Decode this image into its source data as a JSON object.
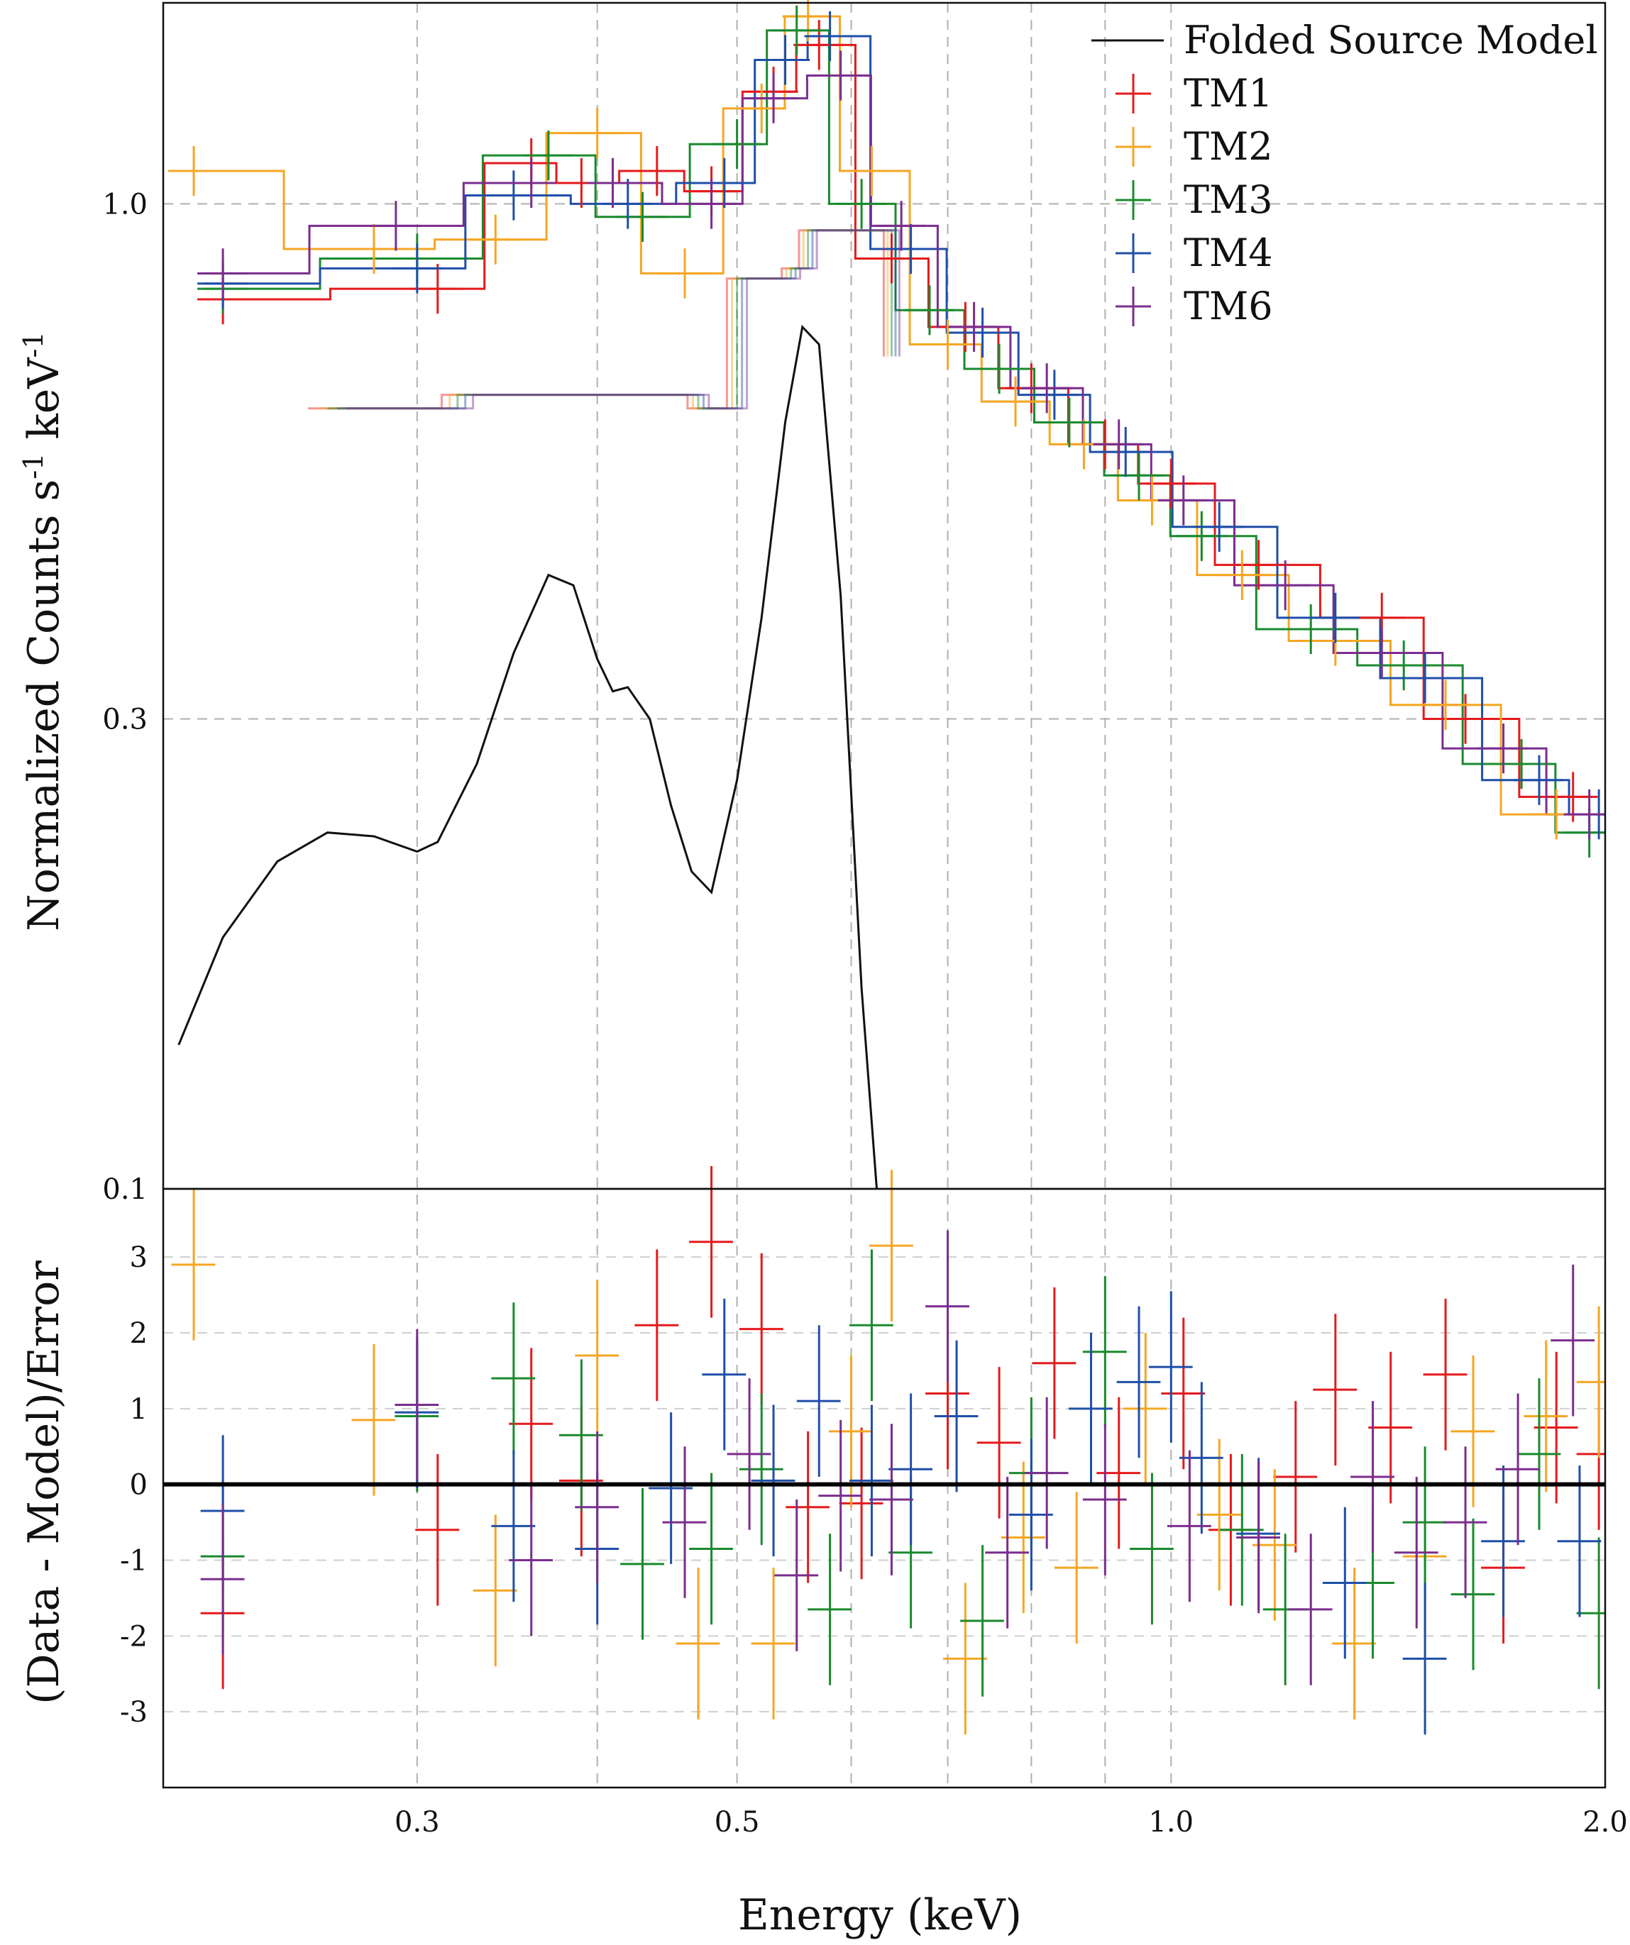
{
  "chart_data": {
    "type": "line",
    "xscale": "log",
    "xlim": [
      0.2,
      2.0
    ],
    "xlabel": "Energy (keV)",
    "x_ticks": [
      0.3,
      0.5,
      1.0,
      2.0
    ],
    "x_tick_labels": [
      "0.3",
      "0.5",
      "1.0",
      "2.0"
    ],
    "x_grid_minor": [
      0.4,
      0.6,
      0.7,
      0.8,
      0.9
    ],
    "colors": {
      "TM1": "#e41a1c",
      "TM2": "#f5a623",
      "TM3": "#1a8a2e",
      "TM4": "#1f4fa8",
      "TM6": "#7b2d8e",
      "model": "#111111"
    },
    "legend": {
      "placement": "top-right",
      "entries": [
        "Folded Source Model",
        "TM1",
        "TM2",
        "TM3",
        "TM4",
        "TM6"
      ]
    },
    "top": {
      "yscale": "log",
      "ylim": [
        0.1,
        1.6
      ],
      "ylabel_main": "Normalized Counts s",
      "ylabel_sup1": "-1",
      "ylabel_mid": " keV",
      "ylabel_sup2": "-1",
      "y_ticks": [
        0.1,
        0.3,
        1.0
      ],
      "y_tick_labels": [
        "0.1",
        "0.3",
        "1.0"
      ],
      "folded_source_model": {
        "x": [
          0.205,
          0.22,
          0.24,
          0.26,
          0.28,
          0.3,
          0.31,
          0.33,
          0.35,
          0.37,
          0.385,
          0.4,
          0.41,
          0.42,
          0.435,
          0.45,
          0.465,
          0.48,
          0.5,
          0.52,
          0.54,
          0.555,
          0.57,
          0.59,
          0.61,
          0.625
        ],
        "y": [
          0.14,
          0.18,
          0.215,
          0.23,
          0.228,
          0.22,
          0.225,
          0.27,
          0.35,
          0.42,
          0.41,
          0.345,
          0.32,
          0.323,
          0.3,
          0.245,
          0.21,
          0.2,
          0.26,
          0.38,
          0.6,
          0.75,
          0.72,
          0.4,
          0.16,
          0.1
        ]
      },
      "data": {
        "TM1": {
          "x": [
            0.22,
            0.31,
            0.36,
            0.39,
            0.44,
            0.48,
            0.53,
            0.57,
            0.64,
            0.72,
            0.8,
            0.9,
            1.0,
            1.15,
            1.4,
            1.6,
            1.9
          ],
          "y": [
            0.8,
            0.82,
            1.1,
            1.05,
            1.08,
            1.03,
            1.3,
            1.45,
            0.88,
            0.75,
            0.65,
            0.57,
            0.52,
            0.43,
            0.38,
            0.3,
            0.25
          ]
        },
        "TM2": {
          "x": [
            0.21,
            0.28,
            0.34,
            0.4,
            0.46,
            0.52,
            0.56,
            0.62,
            0.7,
            0.78,
            0.87,
            0.97,
            1.12,
            1.3,
            1.55,
            1.85
          ],
          "y": [
            1.08,
            0.9,
            0.92,
            1.18,
            0.85,
            1.25,
            1.55,
            1.08,
            0.72,
            0.63,
            0.57,
            0.5,
            0.42,
            0.36,
            0.31,
            0.24
          ]
        },
        "TM3": {
          "x": [
            0.22,
            0.3,
            0.37,
            0.43,
            0.5,
            0.55,
            0.61,
            0.68,
            0.76,
            0.85,
            0.95,
            1.05,
            1.25,
            1.45,
            1.75,
            1.95
          ],
          "y": [
            0.82,
            0.88,
            1.12,
            0.97,
            1.15,
            1.5,
            1.0,
            0.78,
            0.68,
            0.6,
            0.53,
            0.46,
            0.37,
            0.34,
            0.27,
            0.23
          ]
        },
        "TM4": {
          "x": [
            0.22,
            0.3,
            0.35,
            0.42,
            0.49,
            0.54,
            0.58,
            0.66,
            0.74,
            0.83,
            0.93,
            1.08,
            1.3,
            1.5,
            1.8,
            1.98
          ],
          "y": [
            0.83,
            0.86,
            1.02,
            1.0,
            1.05,
            1.4,
            1.48,
            0.9,
            0.74,
            0.64,
            0.56,
            0.47,
            0.38,
            0.33,
            0.26,
            0.24
          ]
        },
        "TM6": {
          "x": [
            0.22,
            0.29,
            0.36,
            0.41,
            0.48,
            0.53,
            0.59,
            0.65,
            0.73,
            0.82,
            0.92,
            1.02,
            1.2,
            1.4,
            1.7,
            1.95
          ],
          "y": [
            0.85,
            0.95,
            1.05,
            1.05,
            1.0,
            1.28,
            1.35,
            0.95,
            0.75,
            0.65,
            0.57,
            0.5,
            0.41,
            0.35,
            0.28,
            0.24
          ]
        }
      }
    },
    "bottom": {
      "ylim": [
        -4,
        3.9
      ],
      "ylabel": "(Data - Model)/Error",
      "y_ticks": [
        -3,
        -2,
        -1,
        0,
        1,
        2,
        3
      ],
      "y_tick_labels": [
        "-3",
        "-2",
        "-1",
        "0",
        "1",
        "2",
        "3"
      ],
      "zero_line": 0,
      "residuals": {
        "TM1": {
          "x": [
            0.22,
            0.31,
            0.36,
            0.39,
            0.44,
            0.48,
            0.52,
            0.56,
            0.61,
            0.7,
            0.76,
            0.83,
            0.92,
            1.02,
            1.1,
            1.22,
            1.3,
            1.42,
            1.55,
            1.7,
            1.85,
            1.98
          ],
          "y": [
            -1.7,
            -0.6,
            0.8,
            0.05,
            2.1,
            3.2,
            2.05,
            -0.3,
            -0.25,
            1.2,
            0.55,
            1.6,
            0.15,
            1.2,
            -0.6,
            0.1,
            1.25,
            0.75,
            1.45,
            -1.1,
            0.75,
            0.4
          ]
        },
        "TM2": {
          "x": [
            0.21,
            0.28,
            0.34,
            0.4,
            0.47,
            0.53,
            0.6,
            0.64,
            0.72,
            0.79,
            0.86,
            0.96,
            1.08,
            1.18,
            1.34,
            1.5,
            1.62,
            1.82,
            1.98
          ],
          "y": [
            2.9,
            0.85,
            -1.4,
            1.7,
            -2.1,
            -2.1,
            0.7,
            3.15,
            -2.3,
            -0.7,
            -1.1,
            1.0,
            -0.4,
            -0.8,
            -2.1,
            -0.95,
            0.7,
            0.9,
            1.35
          ]
        },
        "TM3": {
          "x": [
            0.22,
            0.3,
            0.35,
            0.39,
            0.43,
            0.48,
            0.52,
            0.58,
            0.62,
            0.66,
            0.74,
            0.8,
            0.9,
            0.97,
            1.12,
            1.2,
            1.38,
            1.5,
            1.62,
            1.8,
            1.98
          ],
          "y": [
            -0.95,
            0.9,
            1.4,
            0.65,
            -1.05,
            -0.85,
            0.2,
            -1.65,
            2.1,
            -0.9,
            -1.8,
            0.15,
            1.75,
            -0.85,
            -0.6,
            -1.65,
            -1.3,
            -0.5,
            -1.45,
            0.4,
            -1.7
          ]
        },
        "TM4": {
          "x": [
            0.22,
            0.3,
            0.35,
            0.4,
            0.45,
            0.49,
            0.53,
            0.57,
            0.62,
            0.66,
            0.71,
            0.8,
            0.88,
            0.95,
            1.0,
            1.05,
            1.15,
            1.32,
            1.5,
            1.7,
            1.92
          ],
          "y": [
            -0.35,
            0.95,
            -0.55,
            -0.85,
            -0.05,
            1.45,
            0.05,
            1.1,
            0.05,
            0.2,
            0.9,
            -0.4,
            1.0,
            1.35,
            1.55,
            0.35,
            -0.65,
            -1.3,
            -2.3,
            -0.75,
            -0.75
          ]
        },
        "TM6": {
          "x": [
            0.22,
            0.3,
            0.36,
            0.4,
            0.46,
            0.51,
            0.55,
            0.59,
            0.64,
            0.7,
            0.77,
            0.82,
            0.9,
            1.03,
            1.15,
            1.25,
            1.38,
            1.48,
            1.6,
            1.74,
            1.9
          ],
          "y": [
            -1.25,
            1.05,
            -1.0,
            -0.3,
            -0.5,
            0.4,
            -1.2,
            -0.15,
            -0.2,
            2.35,
            -0.9,
            0.15,
            -0.2,
            -0.55,
            -0.7,
            -1.65,
            0.1,
            -0.9,
            -0.5,
            0.2,
            1.9
          ]
        }
      }
    }
  }
}
